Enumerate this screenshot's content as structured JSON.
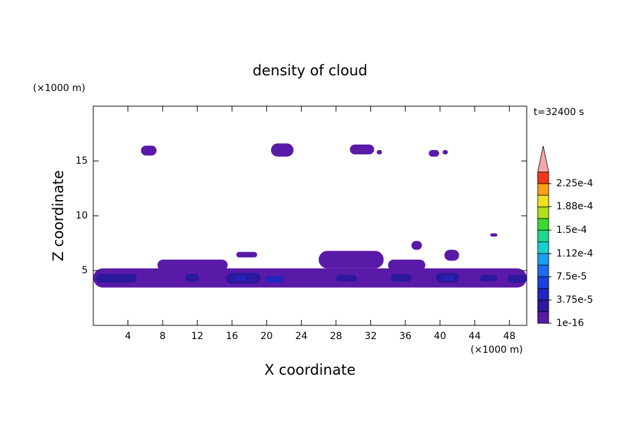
{
  "chart_data": {
    "type": "contour",
    "title": "density of cloud",
    "subtitle": "t=32400 s",
    "xlabel": "X coordinate",
    "ylabel": "Z coordinate",
    "xunit": "(×1000 m)",
    "yunit": "(×1000 m)",
    "xlim": [
      0,
      50
    ],
    "ylim": [
      0,
      20
    ],
    "xticks": [
      4,
      8,
      12,
      16,
      20,
      24,
      28,
      32,
      36,
      40,
      44,
      48
    ],
    "yticks": [
      5,
      10,
      15
    ],
    "colorbar": {
      "clim": [
        1e-16,
        0.00024375
      ],
      "ticks": [
        {
          "value": 1e-16,
          "label": "1e-16"
        },
        {
          "value": 3.75e-05,
          "label": "3.75e-5"
        },
        {
          "value": 7.5e-05,
          "label": "7.5e-5"
        },
        {
          "value": 0.000112,
          "label": "1.12e-4"
        },
        {
          "value": 0.00015,
          "label": "1.5e-4"
        },
        {
          "value": 0.000188,
          "label": "1.88e-4"
        },
        {
          "value": 0.000225,
          "label": "2.25e-4"
        }
      ],
      "colors": [
        "#5a1aa8",
        "#2c189c",
        "#2424c0",
        "#1e40e0",
        "#1e6cf0",
        "#18a0f0",
        "#18d0d0",
        "#20d890",
        "#40d830",
        "#b0e020",
        "#f0e020",
        "#f8a018",
        "#f03818"
      ],
      "extend_color": "#f4a8a8"
    },
    "regions": [
      {
        "x": [
          0,
          50
        ],
        "z": [
          3.45,
          5.2
        ],
        "level": 0
      },
      {
        "x": [
          5.5,
          7.3
        ],
        "z": [
          15.5,
          16.4
        ],
        "level": 0
      },
      {
        "x": [
          20.5,
          23.1
        ],
        "z": [
          15.4,
          16.6
        ],
        "level": 0
      },
      {
        "x": [
          29.6,
          32.4
        ],
        "z": [
          15.6,
          16.5
        ],
        "level": 0
      },
      {
        "x": [
          32.7,
          33.3
        ],
        "z": [
          15.6,
          16.0
        ],
        "level": 0
      },
      {
        "x": [
          38.7,
          39.9
        ],
        "z": [
          15.4,
          16.0
        ],
        "level": 0
      },
      {
        "x": [
          40.3,
          40.9
        ],
        "z": [
          15.6,
          16.0
        ],
        "level": 0
      },
      {
        "x": [
          7.4,
          15.5
        ],
        "z": [
          5.0,
          6.0
        ],
        "level": 0
      },
      {
        "x": [
          16.5,
          18.9
        ],
        "z": [
          6.2,
          6.7
        ],
        "level": 0
      },
      {
        "x": [
          26.0,
          33.5
        ],
        "z": [
          5.2,
          6.8
        ],
        "level": 0
      },
      {
        "x": [
          34.0,
          38.3
        ],
        "z": [
          5.0,
          6.0
        ],
        "level": 0
      },
      {
        "x": [
          40.5,
          42.2
        ],
        "z": [
          5.9,
          6.9
        ],
        "level": 0
      },
      {
        "x": [
          45.8,
          46.6
        ],
        "z": [
          8.1,
          8.4
        ],
        "level": 0
      },
      {
        "x": [
          36.7,
          37.9
        ],
        "z": [
          6.9,
          7.7
        ],
        "level": 0
      },
      {
        "x": [
          0.3,
          5.0
        ],
        "z": [
          3.9,
          4.7
        ],
        "level": 1
      },
      {
        "x": [
          10.6,
          12.2
        ],
        "z": [
          4.0,
          4.7
        ],
        "level": 1
      },
      {
        "x": [
          15.3,
          19.3
        ],
        "z": [
          3.8,
          4.8
        ],
        "level": 1
      },
      {
        "x": [
          16.4,
          17.6
        ],
        "z": [
          4.1,
          4.5
        ],
        "level": 2
      },
      {
        "x": [
          19.8,
          22.0
        ],
        "z": [
          3.9,
          4.5
        ],
        "level": 2
      },
      {
        "x": [
          28.0,
          30.4
        ],
        "z": [
          4.0,
          4.6
        ],
        "level": 1
      },
      {
        "x": [
          34.3,
          36.7
        ],
        "z": [
          4.0,
          4.7
        ],
        "level": 1
      },
      {
        "x": [
          39.5,
          42.2
        ],
        "z": [
          3.9,
          4.8
        ],
        "level": 1
      },
      {
        "x": [
          40.4,
          41.6
        ],
        "z": [
          4.1,
          4.5
        ],
        "level": 2
      },
      {
        "x": [
          44.6,
          46.6
        ],
        "z": [
          4.0,
          4.6
        ],
        "level": 1
      },
      {
        "x": [
          47.8,
          50.0
        ],
        "z": [
          3.9,
          4.6
        ],
        "level": 1
      }
    ]
  }
}
